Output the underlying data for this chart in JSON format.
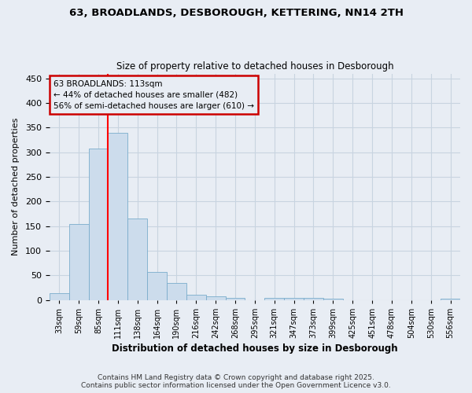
{
  "title_line1": "63, BROADLANDS, DESBOROUGH, KETTERING, NN14 2TH",
  "title_line2": "Size of property relative to detached houses in Desborough",
  "xlabel": "Distribution of detached houses by size in Desborough",
  "ylabel": "Number of detached properties",
  "categories": [
    "33sqm",
    "59sqm",
    "85sqm",
    "111sqm",
    "138sqm",
    "164sqm",
    "190sqm",
    "216sqm",
    "242sqm",
    "268sqm",
    "295sqm",
    "321sqm",
    "347sqm",
    "373sqm",
    "399sqm",
    "425sqm",
    "451sqm",
    "478sqm",
    "504sqm",
    "530sqm",
    "556sqm"
  ],
  "values": [
    14,
    155,
    308,
    340,
    165,
    57,
    34,
    10,
    8,
    5,
    0,
    4,
    5,
    5,
    2,
    0,
    0,
    0,
    0,
    0,
    3
  ],
  "bar_color": "#ccdcec",
  "bar_edge_color": "#7aaccc",
  "grid_color": "#c8d4e0",
  "background_color": "#e8edf4",
  "red_line_index": 3,
  "annotation_text_line1": "63 BROADLANDS: 113sqm",
  "annotation_text_line2": "← 44% of detached houses are smaller (482)",
  "annotation_text_line3": "56% of semi-detached houses are larger (610) →",
  "annotation_box_color": "#cc0000",
  "ylim": [
    0,
    460
  ],
  "yticks": [
    0,
    50,
    100,
    150,
    200,
    250,
    300,
    350,
    400,
    450
  ],
  "footer_line1": "Contains HM Land Registry data © Crown copyright and database right 2025.",
  "footer_line2": "Contains public sector information licensed under the Open Government Licence v3.0."
}
